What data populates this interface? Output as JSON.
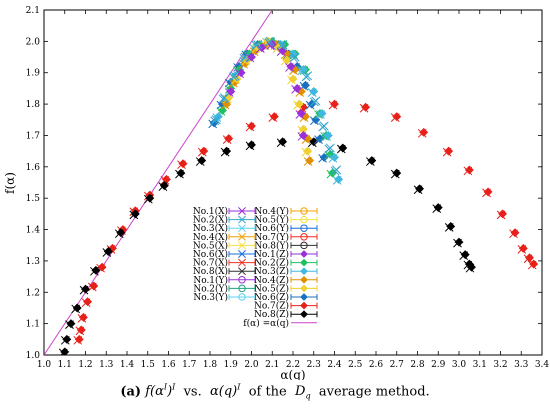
{
  "chart_data": {
    "type": "scatter",
    "xlabel": "α(q)",
    "ylabel": "f(α)",
    "xlim": [
      1.0,
      3.4
    ],
    "ylim": [
      1.0,
      2.1
    ],
    "xticks": [
      "1.0",
      "1.1",
      "1.2",
      "1.3",
      "1.4",
      "1.5",
      "1.6",
      "1.7",
      "1.8",
      "1.9",
      "2.0",
      "2.1",
      "2.2",
      "2.3",
      "2.4",
      "2.5",
      "2.6",
      "2.7",
      "2.8",
      "2.9",
      "3.0",
      "3.1",
      "3.2",
      "3.3",
      "3.4"
    ],
    "yticks": [
      "1.0",
      "1.1",
      "1.2",
      "1.3",
      "1.4",
      "1.5",
      "1.6",
      "1.7",
      "1.8",
      "1.9",
      "2.0",
      "2.1"
    ],
    "grid": false,
    "legend_position": "center",
    "reference_line": {
      "label": "f(α) =α(q)",
      "color": "#cc44cc",
      "points": [
        [
          1.0,
          1.0
        ],
        [
          2.1,
          2.1
        ]
      ]
    },
    "series": [
      {
        "name": "No.1(X)",
        "marker": "x",
        "color": "#9b30d9"
      },
      {
        "name": "No.2(X)",
        "marker": "x",
        "color": "#33a5cc"
      },
      {
        "name": "No.3(X)",
        "marker": "x",
        "color": "#5fd0f0"
      },
      {
        "name": "No.4(X)",
        "marker": "x",
        "color": "#f0a000"
      },
      {
        "name": "No.5(X)",
        "marker": "x",
        "color": "#f5e040"
      },
      {
        "name": "No.6(X)",
        "marker": "x",
        "color": "#1a6fd8"
      },
      {
        "name": "No.7(X)",
        "marker": "x",
        "color": "#f03020"
      },
      {
        "name": "No.8(X)",
        "marker": "x",
        "color": "#303030"
      },
      {
        "name": "No.1(Y)",
        "marker": "o",
        "color": "#9b30d9"
      },
      {
        "name": "No.2(Y)",
        "marker": "o",
        "color": "#20a080"
      },
      {
        "name": "No.3(Y)",
        "marker": "o",
        "color": "#5fd0f0"
      },
      {
        "name": "No.4(Y)",
        "marker": "o",
        "color": "#f0a000"
      },
      {
        "name": "No.5(Y)",
        "marker": "o",
        "color": "#f5e040"
      },
      {
        "name": "No.6(Y)",
        "marker": "o",
        "color": "#1a6fd8"
      },
      {
        "name": "No.7(Y)",
        "marker": "o",
        "color": "#f03020"
      },
      {
        "name": "No.8(Y)",
        "marker": "o",
        "color": "#303030"
      },
      {
        "name": "No.1(Z)",
        "marker": "diamond",
        "color": "#9b30d9"
      },
      {
        "name": "No.2(Z)",
        "marker": "diamond",
        "color": "#20c060"
      },
      {
        "name": "No.3(Z)",
        "marker": "diamond",
        "color": "#40b8e0"
      },
      {
        "name": "No.4(Z)",
        "marker": "diamond",
        "color": "#e09000"
      },
      {
        "name": "No.5(Z)",
        "marker": "diamond",
        "color": "#f0d030"
      },
      {
        "name": "No.6(Z)",
        "marker": "diamond",
        "color": "#1a70c0"
      },
      {
        "name": "No.7(Z)",
        "marker": "diamond",
        "color": "#e8201a"
      },
      {
        "name": "No.8(Z)",
        "marker": "diamond",
        "color": "#000000"
      }
    ],
    "curves": [
      {
        "series": "No.7(Z)",
        "marker": "diamond",
        "color": "#e8201a",
        "points": [
          [
            1.17,
            1.05
          ],
          [
            1.18,
            1.08
          ],
          [
            1.19,
            1.12
          ],
          [
            1.21,
            1.17
          ],
          [
            1.24,
            1.22
          ],
          [
            1.28,
            1.28
          ],
          [
            1.33,
            1.34
          ],
          [
            1.38,
            1.4
          ],
          [
            1.44,
            1.46
          ],
          [
            1.51,
            1.51
          ],
          [
            1.59,
            1.56
          ],
          [
            1.67,
            1.61
          ],
          [
            1.77,
            1.65
          ],
          [
            1.89,
            1.69
          ],
          [
            2.0,
            1.73
          ],
          [
            2.11,
            1.76
          ],
          [
            2.25,
            1.79
          ],
          [
            2.4,
            1.8
          ],
          [
            2.55,
            1.79
          ],
          [
            2.7,
            1.76
          ],
          [
            2.83,
            1.71
          ],
          [
            2.95,
            1.65
          ],
          [
            3.05,
            1.59
          ],
          [
            3.14,
            1.52
          ],
          [
            3.21,
            1.45
          ],
          [
            3.27,
            1.39
          ],
          [
            3.31,
            1.34
          ],
          [
            3.34,
            1.31
          ],
          [
            3.36,
            1.29
          ]
        ]
      },
      {
        "series": "No.8(Z)",
        "marker": "diamond",
        "color": "#000000",
        "points": [
          [
            1.1,
            1.01
          ],
          [
            1.11,
            1.05
          ],
          [
            1.13,
            1.1
          ],
          [
            1.16,
            1.15
          ],
          [
            1.2,
            1.21
          ],
          [
            1.25,
            1.27
          ],
          [
            1.31,
            1.33
          ],
          [
            1.37,
            1.39
          ],
          [
            1.44,
            1.45
          ],
          [
            1.51,
            1.5
          ],
          [
            1.58,
            1.54
          ],
          [
            1.66,
            1.58
          ],
          [
            1.76,
            1.62
          ],
          [
            1.88,
            1.65
          ],
          [
            2.0,
            1.67
          ],
          [
            2.15,
            1.68
          ],
          [
            2.3,
            1.68
          ],
          [
            2.44,
            1.66
          ],
          [
            2.58,
            1.62
          ],
          [
            2.7,
            1.58
          ],
          [
            2.81,
            1.53
          ],
          [
            2.9,
            1.47
          ],
          [
            2.96,
            1.41
          ],
          [
            3.0,
            1.36
          ],
          [
            3.03,
            1.32
          ],
          [
            3.05,
            1.29
          ],
          [
            3.06,
            1.28
          ]
        ]
      },
      {
        "series": "No.6(Z)",
        "marker": "diamond",
        "color": "#1a70c0",
        "points": [
          [
            1.82,
            1.74
          ],
          [
            1.86,
            1.8
          ],
          [
            1.9,
            1.87
          ],
          [
            1.94,
            1.92
          ],
          [
            1.98,
            1.96
          ],
          [
            2.03,
            1.99
          ],
          [
            2.08,
            2.0
          ],
          [
            2.13,
            1.99
          ],
          [
            2.18,
            1.96
          ],
          [
            2.22,
            1.92
          ],
          [
            2.26,
            1.86
          ],
          [
            2.29,
            1.8
          ],
          [
            2.31,
            1.75
          ],
          [
            2.33,
            1.69
          ],
          [
            2.35,
            1.63
          ]
        ]
      },
      {
        "series": "No.2(Z)",
        "marker": "diamond",
        "color": "#20c060",
        "points": [
          [
            1.86,
            1.78
          ],
          [
            1.9,
            1.85
          ],
          [
            1.94,
            1.91
          ],
          [
            1.99,
            1.96
          ],
          [
            2.04,
            1.99
          ],
          [
            2.1,
            2.0
          ],
          [
            2.16,
            1.99
          ],
          [
            2.21,
            1.96
          ],
          [
            2.26,
            1.91
          ],
          [
            2.3,
            1.84
          ],
          [
            2.33,
            1.77
          ],
          [
            2.36,
            1.7
          ],
          [
            2.38,
            1.64
          ],
          [
            2.39,
            1.58
          ]
        ]
      },
      {
        "series": "No.3(Z)",
        "marker": "diamond",
        "color": "#40b8e0",
        "points": [
          [
            1.84,
            1.76
          ],
          [
            1.88,
            1.82
          ],
          [
            1.92,
            1.89
          ],
          [
            1.97,
            1.94
          ],
          [
            2.02,
            1.98
          ],
          [
            2.08,
            2.0
          ],
          [
            2.14,
            1.99
          ],
          [
            2.2,
            1.96
          ],
          [
            2.25,
            1.91
          ],
          [
            2.3,
            1.84
          ],
          [
            2.34,
            1.77
          ],
          [
            2.37,
            1.7
          ],
          [
            2.4,
            1.63
          ],
          [
            2.42,
            1.56
          ]
        ]
      },
      {
        "series": "No.4(Z)",
        "marker": "diamond",
        "color": "#e09000",
        "points": [
          [
            1.88,
            1.8
          ],
          [
            1.92,
            1.87
          ],
          [
            1.97,
            1.93
          ],
          [
            2.02,
            1.97
          ],
          [
            2.07,
            1.99
          ],
          [
            2.12,
            1.99
          ],
          [
            2.17,
            1.96
          ],
          [
            2.21,
            1.91
          ],
          [
            2.24,
            1.84
          ],
          [
            2.26,
            1.76
          ],
          [
            2.27,
            1.69
          ],
          [
            2.28,
            1.62
          ]
        ]
      },
      {
        "series": "No.5(Z)",
        "marker": "diamond",
        "color": "#f0d030",
        "points": [
          [
            1.89,
            1.82
          ],
          [
            1.93,
            1.88
          ],
          [
            1.98,
            1.94
          ],
          [
            2.03,
            1.98
          ],
          [
            2.08,
            2.0
          ],
          [
            2.13,
            1.98
          ],
          [
            2.17,
            1.94
          ],
          [
            2.2,
            1.88
          ],
          [
            2.23,
            1.8
          ],
          [
            2.25,
            1.72
          ],
          [
            2.27,
            1.65
          ]
        ]
      },
      {
        "series": "No.1(Z)",
        "marker": "diamond",
        "color": "#9b30d9",
        "points": [
          [
            1.9,
            1.84
          ],
          [
            1.95,
            1.9
          ],
          [
            2.0,
            1.95
          ],
          [
            2.05,
            1.98
          ],
          [
            2.1,
            1.99
          ],
          [
            2.15,
            1.97
          ],
          [
            2.19,
            1.92
          ],
          [
            2.22,
            1.85
          ],
          [
            2.24,
            1.77
          ],
          [
            2.25,
            1.7
          ]
        ]
      },
      {
        "series": "No.2(X)",
        "marker": "x",
        "color": "#33a5cc",
        "points": [
          [
            1.83,
            1.75
          ],
          [
            1.87,
            1.82
          ],
          [
            1.92,
            1.89
          ],
          [
            1.97,
            1.95
          ],
          [
            2.03,
            1.99
          ],
          [
            2.09,
            2.0
          ],
          [
            2.15,
            1.99
          ],
          [
            2.21,
            1.95
          ],
          [
            2.27,
            1.89
          ],
          [
            2.31,
            1.81
          ],
          [
            2.35,
            1.73
          ],
          [
            2.38,
            1.66
          ],
          [
            2.41,
            1.59
          ]
        ]
      }
    ]
  },
  "caption": {
    "label": "(a)",
    "lhs": "f(α",
    "lhs_sup1": "I",
    "lhs_close": ")",
    "lhs_sup2": "I",
    "vs": "vs.",
    "rhs": "α(q)",
    "rhs_sup": "I",
    "of_the": "of the",
    "dq": "D",
    "dq_sub": "q",
    "rest": "average method."
  }
}
